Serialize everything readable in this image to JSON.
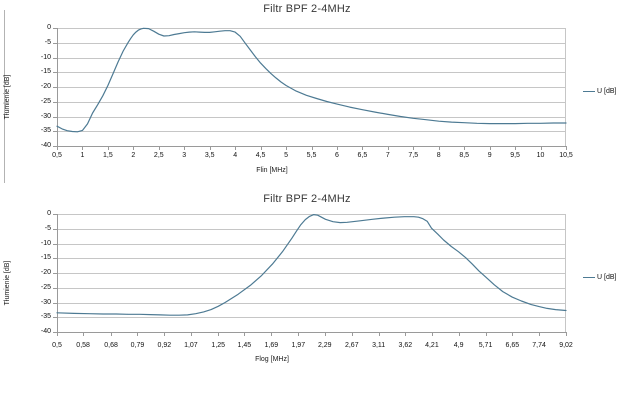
{
  "colors": {
    "series": "#4d7a93",
    "grid": "#c6c6c6",
    "axis": "#9a9a9a",
    "text": "#111111",
    "title": "#383838"
  },
  "chart_data": [
    {
      "type": "line",
      "title": "Filtr BPF 2-4MHz",
      "xlabel": "Flin  [MHz]",
      "ylabel": "Tłumienie [dB]",
      "x_scale": "linear",
      "xlim": [
        0.5,
        10.5
      ],
      "ylim": [
        -40,
        0
      ],
      "grid": "horizontal",
      "legend_position": "right",
      "legend": [
        {
          "label": "U [dB]"
        }
      ],
      "y_ticks": [
        0,
        -5,
        -10,
        -15,
        -20,
        -25,
        -30,
        -35,
        -40
      ],
      "y_tick_labels": [
        "0",
        "-5",
        "-10",
        "-15",
        "-20",
        "-25",
        "-30",
        "-35",
        "-40"
      ],
      "x_ticks": [
        0.5,
        1,
        1.5,
        2,
        2.5,
        3,
        3.5,
        4,
        4.5,
        5,
        5.5,
        6,
        6.5,
        7,
        7.5,
        8,
        8.5,
        9,
        9.5,
        10,
        10.5
      ],
      "x_tick_labels": [
        "0,5",
        "1",
        "1,5",
        "2",
        "2,5",
        "3",
        "3,5",
        "4",
        "4,5",
        "5",
        "5,5",
        "6",
        "6,5",
        "7",
        "7,5",
        "8",
        "8,5",
        "9",
        "9,5",
        "10",
        "10,5"
      ],
      "series": [
        {
          "name": "U [dB]",
          "x": [
            0.5,
            0.6,
            0.7,
            0.8,
            0.9,
            1.0,
            1.1,
            1.2,
            1.3,
            1.4,
            1.5,
            1.6,
            1.7,
            1.8,
            1.9,
            1.95,
            2.0,
            2.05,
            2.1,
            2.15,
            2.2,
            2.3,
            2.4,
            2.5,
            2.6,
            2.7,
            2.8,
            2.9,
            3.0,
            3.1,
            3.2,
            3.3,
            3.4,
            3.5,
            3.6,
            3.7,
            3.8,
            3.9,
            4.0,
            4.1,
            4.2,
            4.3,
            4.4,
            4.5,
            4.6,
            4.7,
            4.8,
            4.9,
            5.0,
            5.2,
            5.4,
            5.6,
            5.8,
            6.0,
            6.25,
            6.5,
            6.75,
            7.0,
            7.25,
            7.5,
            7.75,
            8.0,
            8.25,
            8.5,
            8.75,
            9.0,
            9.25,
            9.5,
            9.75,
            10.0,
            10.25,
            10.5
          ],
          "y": [
            -33.3,
            -34.2,
            -34.8,
            -35.1,
            -35.2,
            -34.7,
            -32.5,
            -28.8,
            -26.0,
            -23.0,
            -19.5,
            -15.5,
            -11.5,
            -7.8,
            -4.8,
            -3.5,
            -2.3,
            -1.4,
            -0.7,
            -0.3,
            -0.1,
            -0.2,
            -1.1,
            -2.1,
            -2.7,
            -2.6,
            -2.2,
            -1.9,
            -1.6,
            -1.4,
            -1.3,
            -1.4,
            -1.5,
            -1.5,
            -1.3,
            -1.1,
            -0.9,
            -0.9,
            -1.4,
            -2.8,
            -5.2,
            -7.5,
            -9.8,
            -11.9,
            -13.7,
            -15.4,
            -16.9,
            -18.3,
            -19.5,
            -21.4,
            -22.8,
            -23.9,
            -24.9,
            -25.8,
            -26.8,
            -27.7,
            -28.5,
            -29.3,
            -30.0,
            -30.6,
            -31.1,
            -31.6,
            -31.9,
            -32.1,
            -32.3,
            -32.4,
            -32.4,
            -32.4,
            -32.3,
            -32.3,
            -32.2,
            -32.2
          ]
        }
      ]
    },
    {
      "type": "line",
      "title": "Filtr BPF 2-4MHz",
      "xlabel": "Flog [MHz]",
      "ylabel": "Tłumienie [dB]",
      "x_scale": "log",
      "xlim": [
        0.5,
        9.02
      ],
      "ylim": [
        -40,
        0
      ],
      "grid": "horizontal",
      "legend_position": "right",
      "legend": [
        {
          "label": "U [dB]"
        }
      ],
      "y_ticks": [
        0,
        -5,
        -10,
        -15,
        -20,
        -25,
        -30,
        -35,
        -40
      ],
      "y_tick_labels": [
        "0",
        "-5",
        "-10",
        "-15",
        "-20",
        "-25",
        "-30",
        "-35",
        "-40"
      ],
      "x_ticks": [
        0.5,
        0.58,
        0.68,
        0.79,
        0.92,
        1.07,
        1.25,
        1.45,
        1.69,
        1.97,
        2.29,
        2.67,
        3.11,
        3.62,
        4.21,
        4.9,
        5.71,
        6.65,
        7.74,
        9.02
      ],
      "x_tick_labels": [
        "0,5",
        "0,58",
        "0,68",
        "0,79",
        "0,92",
        "1,07",
        "1,25",
        "1,45",
        "1,69",
        "1,97",
        "2,29",
        "2,67",
        "3,11",
        "3,62",
        "4,21",
        "4,9",
        "5,71",
        "6,65",
        "7,74",
        "9,02"
      ],
      "series": [
        {
          "name": "U [dB]",
          "x": [
            0.5,
            0.55,
            0.6,
            0.65,
            0.7,
            0.75,
            0.8,
            0.85,
            0.9,
            0.95,
            1.0,
            1.05,
            1.1,
            1.15,
            1.2,
            1.25,
            1.3,
            1.4,
            1.5,
            1.6,
            1.7,
            1.8,
            1.9,
            1.95,
            2.0,
            2.05,
            2.1,
            2.15,
            2.2,
            2.3,
            2.4,
            2.5,
            2.6,
            2.8,
            3.0,
            3.2,
            3.4,
            3.6,
            3.8,
            3.9,
            4.0,
            4.1,
            4.2,
            4.35,
            4.5,
            4.7,
            4.9,
            5.1,
            5.3,
            5.5,
            5.71,
            6.0,
            6.3,
            6.65,
            7.0,
            7.4,
            7.74,
            8.1,
            8.5,
            9.02
          ],
          "y": [
            -33.5,
            -33.7,
            -33.8,
            -33.9,
            -33.9,
            -34.0,
            -34.0,
            -34.1,
            -34.2,
            -34.3,
            -34.3,
            -34.2,
            -33.8,
            -33.2,
            -32.4,
            -31.3,
            -30.0,
            -27.2,
            -24.2,
            -20.8,
            -17.0,
            -12.8,
            -8.2,
            -5.8,
            -3.6,
            -1.9,
            -0.8,
            -0.2,
            -0.4,
            -1.8,
            -2.6,
            -2.9,
            -2.8,
            -2.3,
            -1.8,
            -1.4,
            -1.1,
            -0.9,
            -0.9,
            -1.1,
            -1.6,
            -2.5,
            -4.8,
            -6.8,
            -8.8,
            -11.0,
            -12.8,
            -14.8,
            -17.0,
            -19.3,
            -21.3,
            -24.0,
            -26.3,
            -28.2,
            -29.5,
            -30.7,
            -31.4,
            -32.0,
            -32.4,
            -32.7
          ]
        }
      ]
    }
  ]
}
